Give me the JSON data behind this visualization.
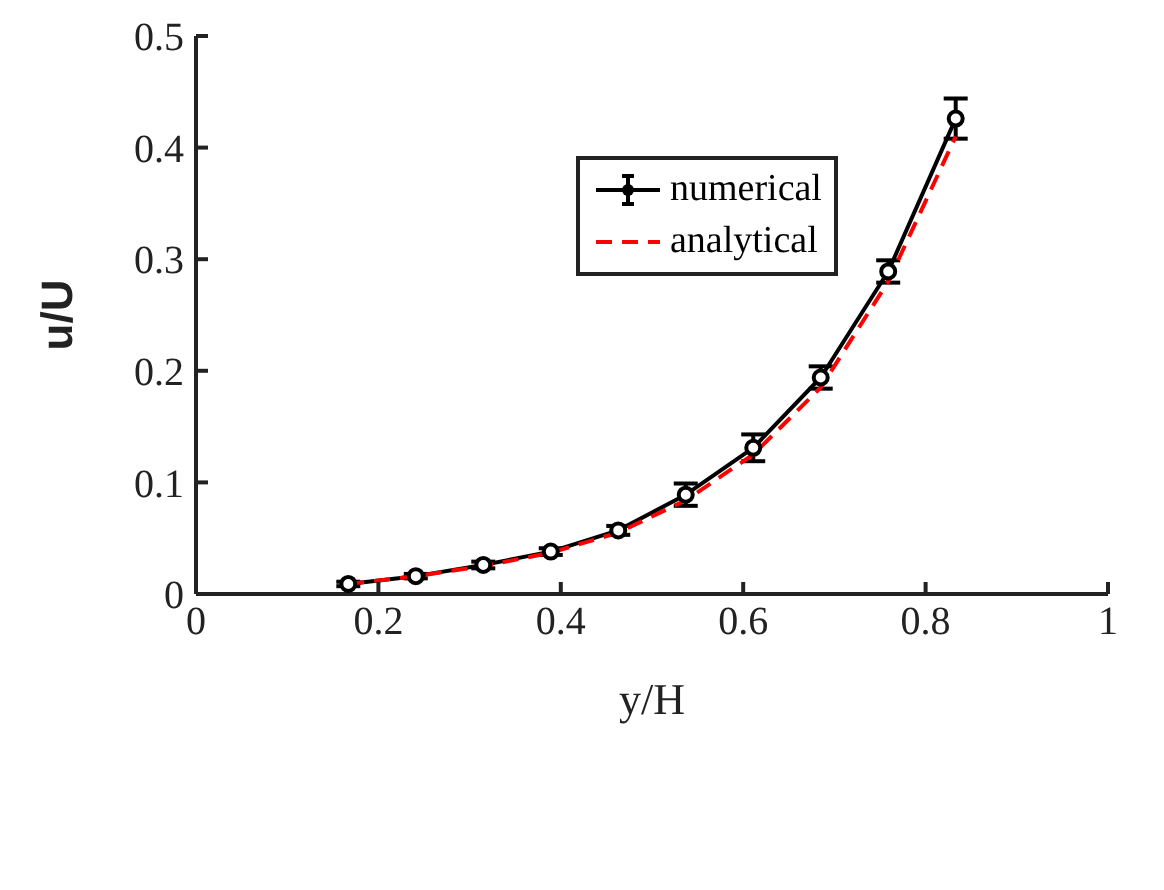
{
  "chart_data": {
    "type": "line",
    "xlabel": "y/H",
    "ylabel": "u/U",
    "xlim": [
      0,
      1
    ],
    "xticks": [
      0,
      0.2,
      0.4,
      0.6,
      0.8,
      1
    ],
    "ylim": [
      0,
      0.5
    ],
    "yticks": [
      0,
      0.1,
      0.2,
      0.3,
      0.4,
      0.5
    ],
    "x": [
      0.167,
      0.241,
      0.315,
      0.389,
      0.463,
      0.537,
      0.611,
      0.685,
      0.759,
      0.833
    ],
    "series": [
      {
        "name": "numerical",
        "color": "#000000",
        "marker": "circle",
        "line_style": "solid",
        "values": [
          0.009,
          0.016,
          0.026,
          0.038,
          0.057,
          0.089,
          0.131,
          0.194,
          0.289,
          0.426
        ],
        "errors": [
          0.002,
          0.002,
          0.003,
          0.003,
          0.004,
          0.01,
          0.012,
          0.01,
          0.01,
          0.018
        ]
      },
      {
        "name": "analytical",
        "color": "#ff0000",
        "marker": "none",
        "line_style": "dashed",
        "values": [
          0.009,
          0.016,
          0.025,
          0.037,
          0.055,
          0.084,
          0.125,
          0.185,
          0.28,
          0.41
        ]
      }
    ],
    "legend": "top",
    "grid": false
  }
}
